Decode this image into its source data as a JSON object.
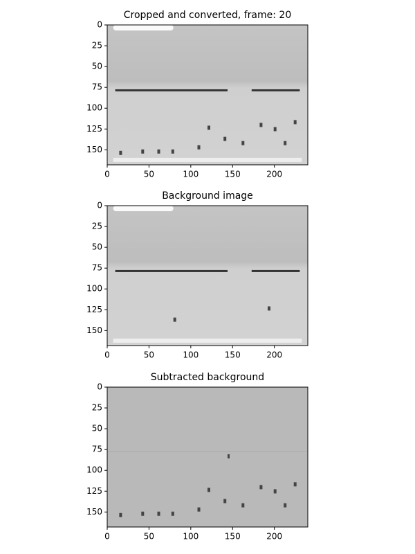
{
  "chart_data": [
    {
      "type": "image",
      "title": "Cropped and converted, frame: 20",
      "xlim": [
        0,
        240
      ],
      "ylim": [
        168,
        0
      ],
      "xticks": [
        0,
        50,
        100,
        150,
        200
      ],
      "yticks": [
        0,
        25,
        50,
        75,
        100,
        125,
        150
      ],
      "cmap": "gray"
    },
    {
      "type": "image",
      "title": "Background image",
      "xlim": [
        0,
        240
      ],
      "ylim": [
        168,
        0
      ],
      "xticks": [
        0,
        50,
        100,
        150,
        200
      ],
      "yticks": [
        0,
        25,
        50,
        75,
        100,
        125,
        150
      ],
      "cmap": "gray"
    },
    {
      "type": "image",
      "title": "Subtracted background",
      "xlim": [
        0,
        240
      ],
      "ylim": [
        168,
        0
      ],
      "xticks": [
        0,
        50,
        100,
        150,
        200
      ],
      "yticks": [
        0,
        25,
        50,
        75,
        100,
        125,
        150
      ],
      "cmap": "gray"
    }
  ]
}
